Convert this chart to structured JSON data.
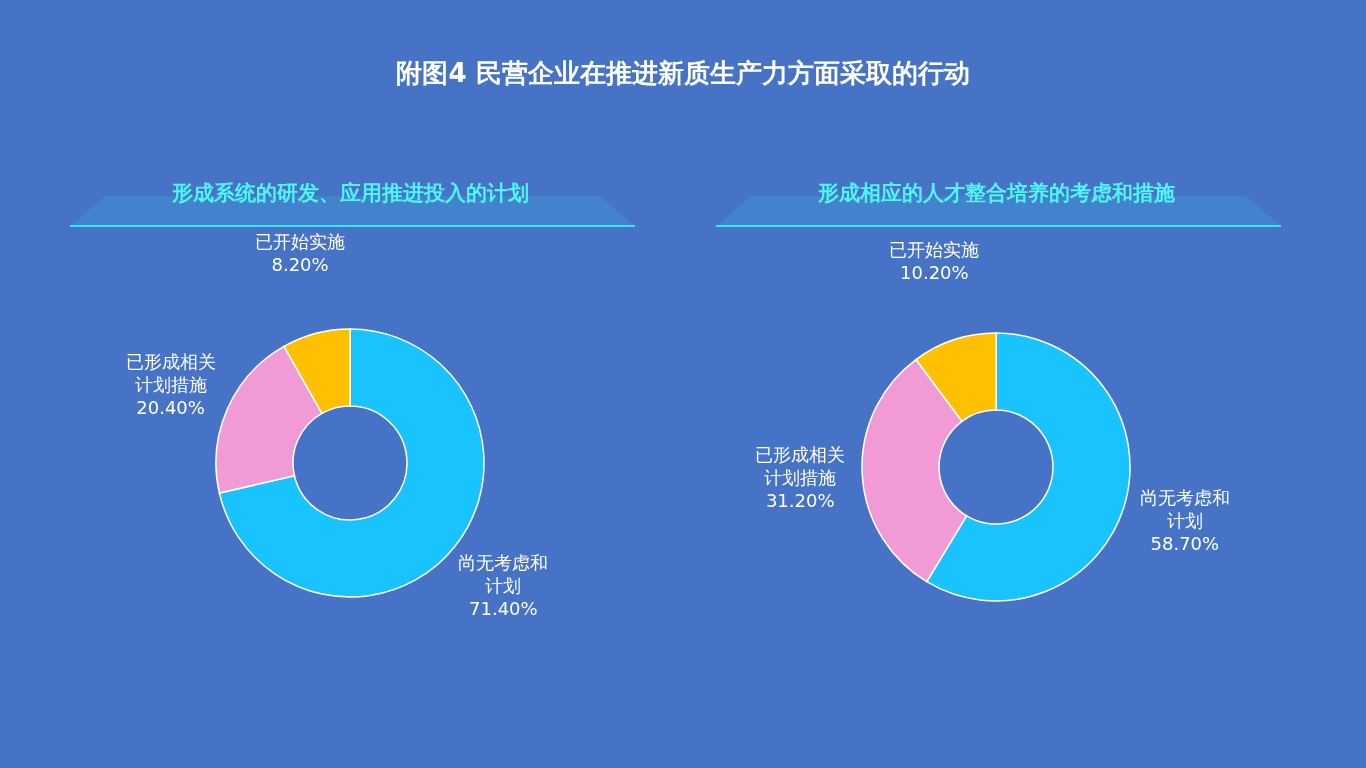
{
  "chart_data": [
    {
      "type": "donut",
      "title": "附图4  民营企业在推进新质生产力方面采取的行动",
      "subtitle": "形成系统的研发、应用推进投入的计划",
      "categories": [
        "尚无考虑和计划",
        "已形成相关计划措施",
        "已开始实施"
      ],
      "values": [
        71.4,
        20.4,
        8.2
      ],
      "value_labels": [
        "71.40%",
        "20.40%",
        "8.20%"
      ],
      "colors": [
        "#19c3fe",
        "#f09ad6",
        "#fec000"
      ]
    },
    {
      "type": "donut",
      "subtitle": "形成相应的人才整合培养的考虑和措施",
      "categories": [
        "尚无考虑和计划",
        "已形成相关计划措施",
        "已开始实施"
      ],
      "values": [
        58.7,
        31.2,
        10.2
      ],
      "value_labels": [
        "58.70%",
        "31.20%",
        "10.20%"
      ],
      "colors": [
        "#19c3fe",
        "#f09ad6",
        "#fec000"
      ]
    }
  ]
}
